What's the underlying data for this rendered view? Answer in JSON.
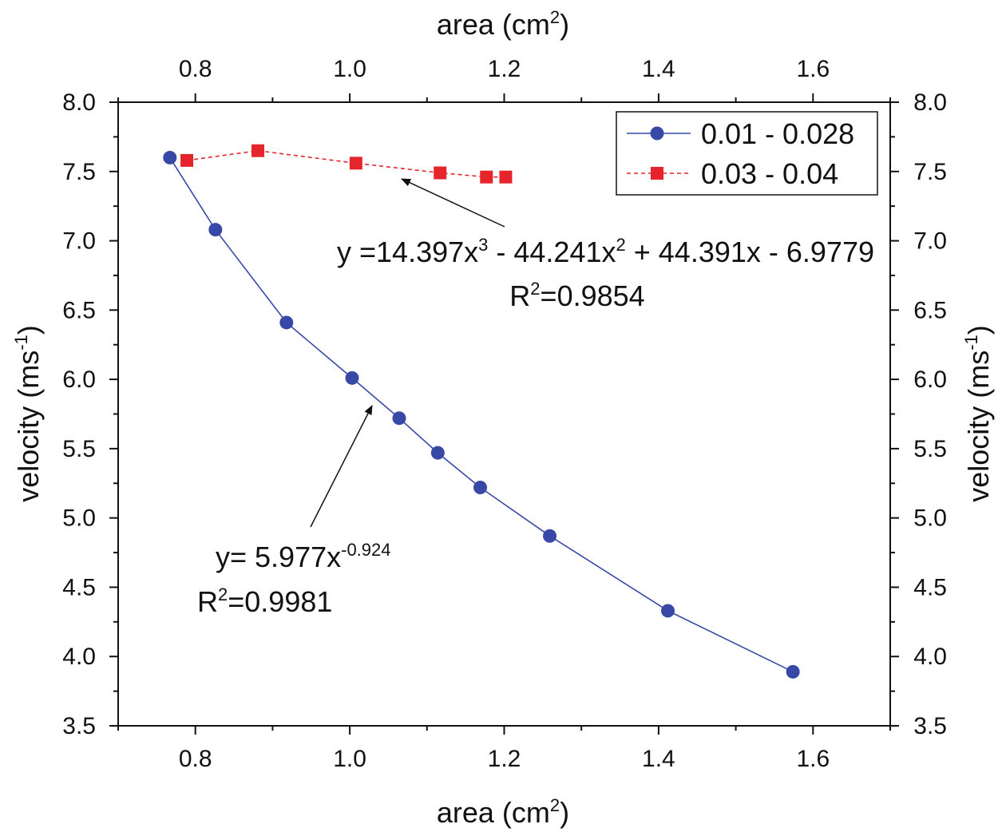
{
  "chart_data": {
    "type": "line",
    "xlabel": "area (cm",
    "xlabel_sup": "2",
    "xlabel_end": ")",
    "ylabel": "velocity (ms",
    "ylabel_sup": "-1",
    "ylabel_end": ")",
    "xlim": [
      0.7,
      1.7
    ],
    "ylim": [
      3.5,
      8.0
    ],
    "x_ticks": [
      0.8,
      1.0,
      1.2,
      1.4,
      1.6
    ],
    "x_tick_labels": [
      "0.8",
      "1.0",
      "1.2",
      "1.4",
      "1.6"
    ],
    "y_ticks": [
      3.5,
      4.0,
      4.5,
      5.0,
      5.5,
      6.0,
      6.5,
      7.0,
      7.5,
      8.0
    ],
    "y_tick_labels": [
      "3.5",
      "4.0",
      "4.5",
      "5.0",
      "5.5",
      "6.0",
      "6.5",
      "7.0",
      "7.5",
      "8.0"
    ],
    "grid": false,
    "legend_position": "top-right",
    "series": [
      {
        "name": "0.01 - 0.028",
        "color": "#3748a6",
        "marker": "circle",
        "line": "solid",
        "x": [
          0.767,
          0.826,
          0.918,
          1.003,
          1.064,
          1.114,
          1.169,
          1.259,
          1.412,
          1.574
        ],
        "y": [
          7.6,
          7.08,
          6.41,
          6.01,
          5.72,
          5.47,
          5.22,
          4.87,
          4.33,
          3.89
        ]
      },
      {
        "name": "0.03 - 0.04",
        "color": "#e5252b",
        "marker": "square",
        "line": "dashed",
        "x": [
          0.789,
          0.881,
          1.008,
          1.117,
          1.177,
          1.202
        ],
        "y": [
          7.58,
          7.65,
          7.56,
          7.49,
          7.46,
          7.46
        ]
      }
    ],
    "annotations": [
      {
        "id": "fit-top",
        "lines": [
          {
            "parts": [
              {
                "t": "y =14.397x"
              },
              {
                "t": "3",
                "sup": true
              },
              {
                "t": " - 44.241x"
              },
              {
                "t": "2",
                "sup": true
              },
              {
                "t": " + 44.391x - 6.9779"
              }
            ]
          },
          {
            "parts": [
              {
                "t": "R"
              },
              {
                "t": "2",
                "sup": true
              },
              {
                "t": "=0.9854"
              }
            ]
          }
        ],
        "arrow_to": [
          1.06,
          7.47
        ]
      },
      {
        "id": "fit-bottom",
        "lines": [
          {
            "parts": [
              {
                "t": "y= 5.977x"
              },
              {
                "t": "-0.924",
                "sup": true
              }
            ]
          },
          {
            "parts": [
              {
                "t": "R"
              },
              {
                "t": "2",
                "sup": true
              },
              {
                "t": "=0.9981"
              }
            ]
          }
        ],
        "arrow_to": [
          1.048,
          5.78
        ]
      }
    ]
  }
}
